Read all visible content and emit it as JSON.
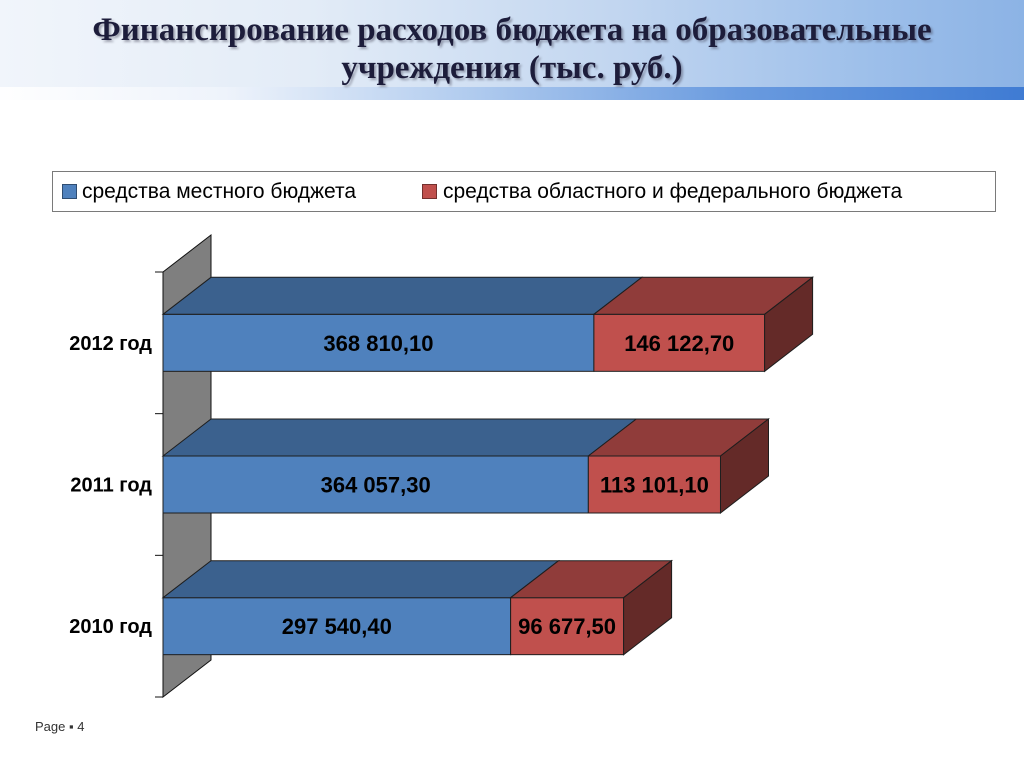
{
  "slide": {
    "title_lines": [
      "Финансирование расходов бюджета на образовательные",
      "учреждения (тыс. руб.)"
    ],
    "footer": {
      "label": "Page",
      "separator": "▪",
      "number": "4"
    }
  },
  "chart_data": {
    "type": "bar",
    "orientation": "horizontal",
    "stacked": true,
    "three_d": true,
    "categories": [
      "2012 год",
      "2011 год",
      "2010 год"
    ],
    "series": [
      {
        "name": "средства местного бюджета",
        "color": "#4f81bd",
        "values": [
          368810.1,
          364057.3,
          297540.4
        ]
      },
      {
        "name": "средства областного и федерального бюджета",
        "color": "#c0504d",
        "values": [
          146122.7,
          113101.1,
          96677.5
        ]
      }
    ],
    "xlim": [
      0,
      600000
    ],
    "x_axis_visible": false,
    "data_labels": true,
    "grid": false,
    "legend": "top"
  }
}
